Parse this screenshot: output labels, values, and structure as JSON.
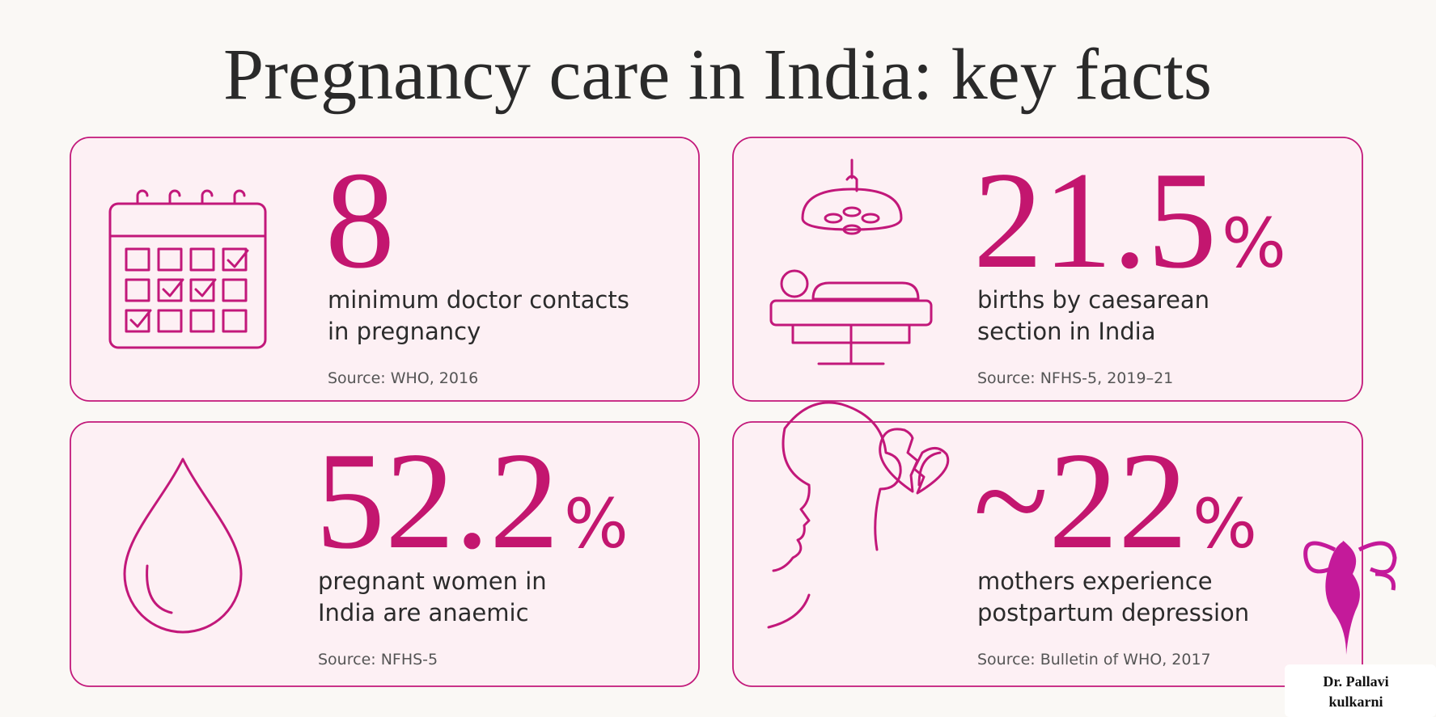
{
  "header": {
    "title": "Pregnancy care in India: key facts"
  },
  "cards": [
    {
      "stat": {
        "value": "8"
      },
      "description": [
        "minimum doctor contacts",
        "in pregnancy"
      ],
      "source": "Source: WHO, 2016"
    },
    {
      "stat": {
        "value": "21.5",
        "unit": "%"
      },
      "description": [
        "births by caesarean",
        "section in India"
      ],
      "source": "Source: NFHS-5, 2019–21"
    },
    {
      "stat": {
        "value": "52.2",
        "unit": "%"
      },
      "description": [
        "pregnant women in",
        "India are anaemic"
      ],
      "source": "Source: NFHS-5"
    },
    {
      "stat": {
        "value": "~22",
        "unit": "%"
      },
      "description": [
        "mothers experience",
        "postpartum depression"
      ],
      "source": "Source: Bulletin of WHO, 2017"
    }
  ],
  "logo": {
    "lines": [
      "Dr. Pallavi",
      "kulkarni"
    ]
  }
}
